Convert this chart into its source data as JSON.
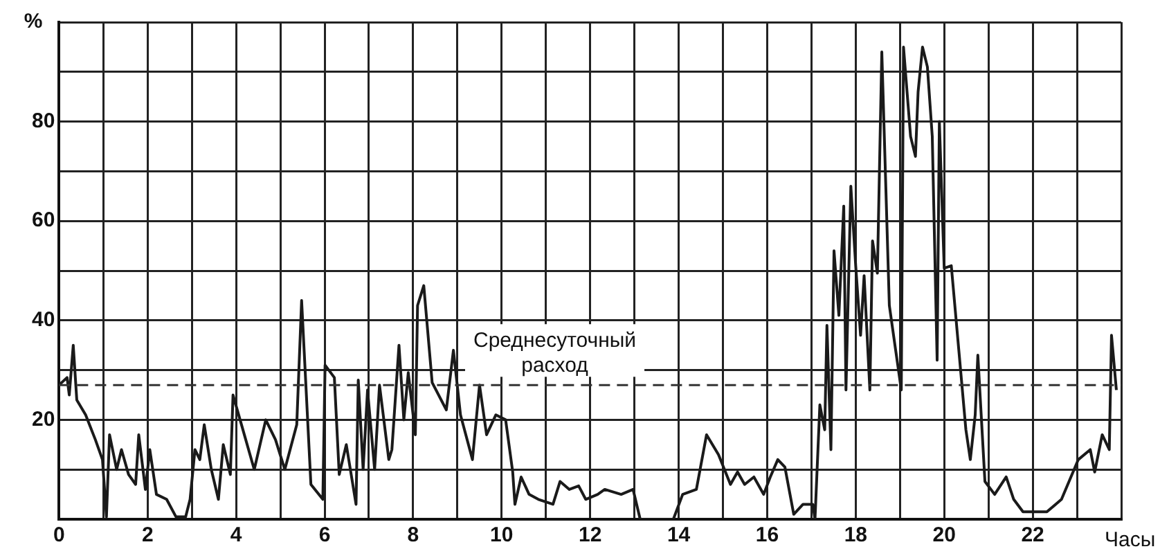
{
  "chart_data": {
    "type": "line",
    "xlabel": "Часы",
    "ylabel": "%",
    "xlim": [
      0,
      24
    ],
    "ylim": [
      0,
      100
    ],
    "xticks": [
      0,
      {
        "value": 1,
        "label": null
      },
      2,
      {
        "value": 3,
        "label": null
      },
      4,
      {
        "value": 5,
        "label": null
      },
      6,
      {
        "value": 7,
        "label": null
      },
      8,
      {
        "value": 9,
        "label": null
      },
      10,
      {
        "value": 11,
        "label": null
      },
      12,
      {
        "value": 13,
        "label": null
      },
      14,
      {
        "value": 15,
        "label": null
      },
      16,
      {
        "value": 17,
        "label": null
      },
      18,
      {
        "value": 19,
        "label": null
      },
      20,
      {
        "value": 21,
        "label": null
      },
      22,
      {
        "value": 23,
        "label": null
      },
      {
        "value": 24,
        "label": null
      }
    ],
    "yticks": [
      {
        "value": 0,
        "label": null
      },
      {
        "value": 10,
        "label": null
      },
      20,
      {
        "value": 30,
        "label": null
      },
      40,
      {
        "value": 50,
        "label": null
      },
      60,
      {
        "value": 70,
        "label": null
      },
      80,
      {
        "value": 90,
        "label": null
      },
      {
        "value": 100,
        "label": null
      }
    ],
    "grid": true,
    "legend": false,
    "marker": "none",
    "line_style": "solid",
    "ref_lines": [
      {
        "axis": "y",
        "value": 27,
        "label": "Среднесуточный расход",
        "line_style": "dashed",
        "color": "#333333"
      }
    ],
    "series": [
      {
        "color": "#1a1a1a",
        "x": [
          0,
          0.18,
          0.23,
          0.32,
          0.4,
          0.6,
          0.82,
          0.98,
          1.07,
          1.14,
          1.3,
          1.41,
          1.57,
          1.73,
          1.8,
          1.95,
          2.05,
          2.2,
          2.43,
          2.64,
          2.86,
          2.96,
          3.07,
          3.18,
          3.28,
          3.44,
          3.6,
          3.71,
          3.87,
          3.93,
          4.09,
          4.41,
          4.67,
          4.89,
          5.1,
          5.37,
          5.48,
          5.69,
          5.96,
          6.01,
          6.22,
          6.33,
          6.49,
          6.71,
          6.76,
          6.87,
          6.97,
          7.13,
          7.24,
          7.45,
          7.52,
          7.68,
          7.79,
          7.89,
          8.05,
          8.1,
          8.24,
          8.43,
          8.75,
          8.91,
          9.07,
          9.34,
          9.5,
          9.66,
          9.87,
          10.09,
          10.25,
          10.3,
          10.44,
          10.62,
          10.83,
          11.16,
          11.32,
          11.53,
          11.74,
          11.9,
          12.17,
          12.33,
          12.7,
          12.97,
          13.13,
          13.88,
          14.09,
          14.4,
          14.63,
          14.9,
          15.17,
          15.33,
          15.49,
          15.7,
          15.92,
          16.07,
          16.24,
          16.4,
          16.6,
          16.81,
          17.03,
          17.08,
          17.19,
          17.3,
          17.35,
          17.44,
          17.51,
          17.62,
          17.73,
          17.78,
          17.89,
          18,
          18.11,
          18.19,
          18.32,
          18.38,
          18.49,
          18.59,
          18.76,
          19.03,
          19.08,
          19.24,
          19.35,
          19.41,
          19.51,
          19.62,
          19.73,
          19.84,
          19.89,
          20,
          20.16,
          20.49,
          20.59,
          20.7,
          20.76,
          20.92,
          21.14,
          21.4,
          21.57,
          21.78,
          22.32,
          22.65,
          23.03,
          23.3,
          23.4,
          23.57,
          23.73,
          23.78,
          23.89
        ],
        "values": [
          27,
          28.5,
          25,
          35,
          24,
          21,
          16,
          12,
          0.5,
          17,
          10,
          14,
          9,
          7,
          17,
          6,
          14,
          5,
          4,
          0.5,
          0.5,
          4,
          14,
          12,
          19,
          10,
          4,
          15,
          9,
          25,
          20,
          10,
          20,
          16,
          10,
          19,
          44,
          7,
          4,
          31,
          28.5,
          9,
          15,
          3,
          28,
          10,
          26,
          10,
          27,
          12,
          14,
          35,
          20,
          29.5,
          17,
          43,
          47,
          27.5,
          22,
          34,
          21,
          12,
          27,
          17,
          21,
          20,
          9.5,
          3,
          8.5,
          5,
          4,
          3,
          7.6,
          6,
          6.7,
          4,
          5,
          6,
          5,
          6,
          0,
          0,
          5,
          6,
          17,
          13,
          7,
          9.5,
          7,
          8.5,
          5,
          8.5,
          12,
          10.5,
          1,
          3,
          3,
          0,
          23,
          18,
          39,
          14,
          54,
          41,
          63,
          26,
          67,
          51,
          37,
          49,
          26,
          56,
          49.5,
          94,
          43,
          26,
          95,
          77,
          73,
          86,
          95,
          91,
          77,
          32,
          80,
          50.5,
          51,
          18,
          12,
          21,
          33,
          7.6,
          5,
          8.5,
          4,
          1.5,
          1.5,
          4,
          12,
          14,
          9.5,
          17,
          14,
          37,
          26
        ]
      }
    ]
  }
}
